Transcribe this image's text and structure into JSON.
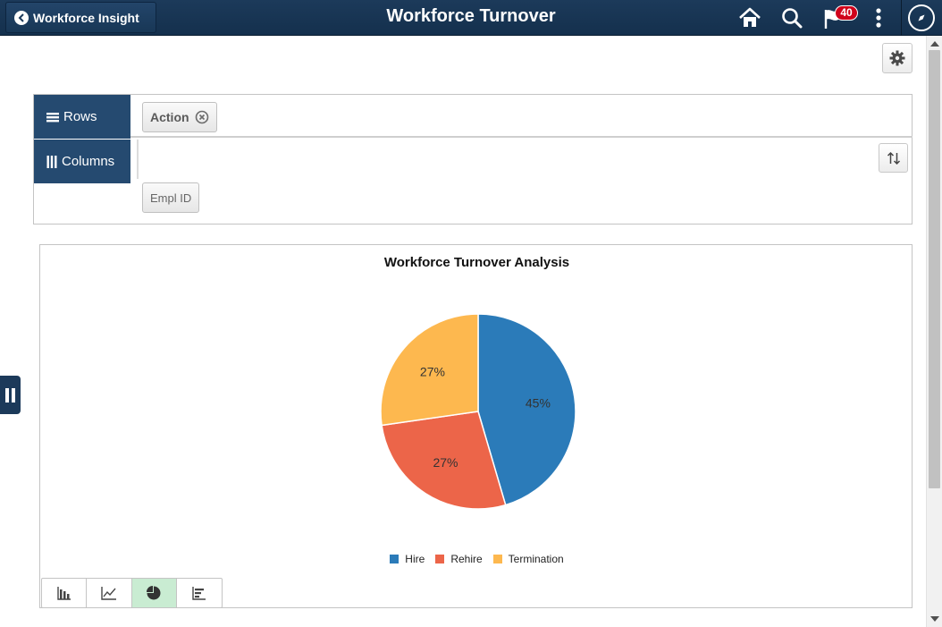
{
  "header": {
    "back_label": "Workforce Insight",
    "title": "Workforce Turnover",
    "notification_count": "40",
    "icons": [
      "home-icon",
      "search-icon",
      "flag-icon",
      "kebab-menu-icon",
      "compass-icon"
    ]
  },
  "pivot": {
    "rows_label": "Rows",
    "columns_label": "Columns",
    "row_chips": [
      {
        "label": "Action"
      }
    ],
    "column_chips": [],
    "available_chips": [
      {
        "label": "Empl ID"
      }
    ]
  },
  "chart": {
    "title": "Workforce Turnover Analysis",
    "chart_types": [
      "bar-chart-icon",
      "line-chart-icon",
      "pie-chart-icon",
      "horizontal-bar-chart-icon"
    ],
    "active_type": "pie-chart-icon"
  },
  "chart_data": {
    "type": "pie",
    "title": "Workforce Turnover Analysis",
    "categories": [
      "Hire",
      "Rehire",
      "Termination"
    ],
    "values": [
      45,
      27,
      27
    ],
    "labels": [
      "45%",
      "27%",
      "27%"
    ],
    "colors": [
      "#2b7bb9",
      "#ec6549",
      "#fdb84f"
    ],
    "legend_position": "bottom-center"
  },
  "colors": {
    "header_bg": "#1c3a5a",
    "pivot_label_bg": "#254a70",
    "active_chart_type": "#c9ecd2",
    "badge": "#d0021b"
  }
}
